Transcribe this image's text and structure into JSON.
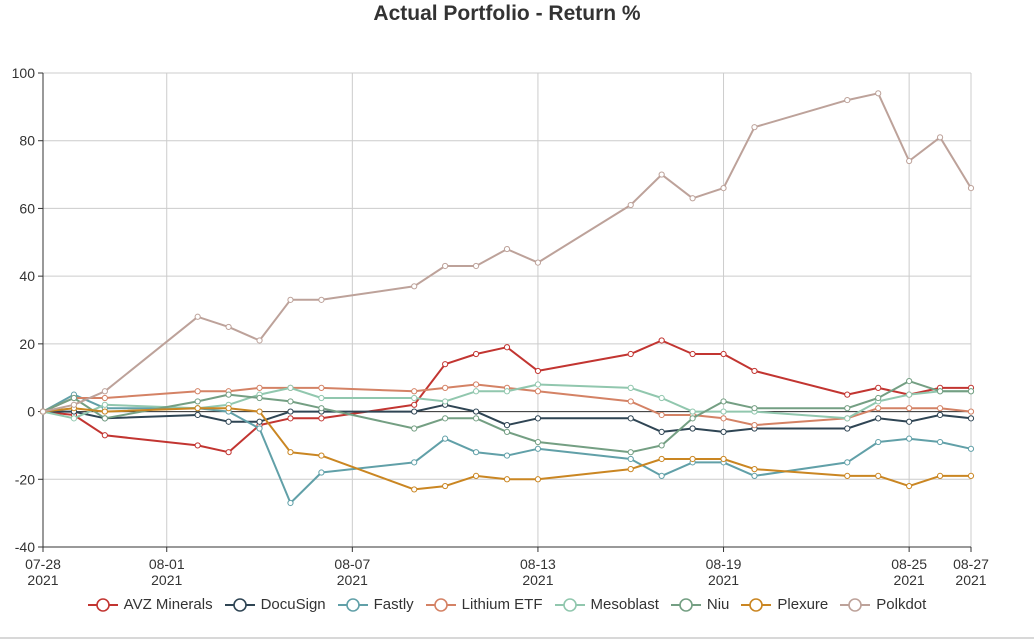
{
  "chart_data": {
    "type": "line",
    "title": "Actual Portfolio - Return %",
    "xlabel": "",
    "ylabel": "",
    "ylim": [
      -40,
      100
    ],
    "yticks": [
      -40,
      -20,
      0,
      20,
      40,
      60,
      80,
      100
    ],
    "grid": true,
    "legend_position": "bottom",
    "x_tick_labels": [
      {
        "date": "2021-07-28",
        "line1": "07-28",
        "line2": "2021"
      },
      {
        "date": "2021-08-01",
        "line1": "08-01",
        "line2": "2021"
      },
      {
        "date": "2021-08-07",
        "line1": "08-07",
        "line2": "2021"
      },
      {
        "date": "2021-08-13",
        "line1": "08-13",
        "line2": "2021"
      },
      {
        "date": "2021-08-19",
        "line1": "08-19",
        "line2": "2021"
      },
      {
        "date": "2021-08-25",
        "line1": "08-25",
        "line2": "2021"
      },
      {
        "date": "2021-08-27",
        "line1": "08-27",
        "line2": "2021"
      }
    ],
    "x": [
      "2021-07-28",
      "2021-07-29",
      "2021-07-30",
      "2021-08-02",
      "2021-08-03",
      "2021-08-04",
      "2021-08-05",
      "2021-08-06",
      "2021-08-09",
      "2021-08-10",
      "2021-08-11",
      "2021-08-12",
      "2021-08-13",
      "2021-08-16",
      "2021-08-17",
      "2021-08-18",
      "2021-08-19",
      "2021-08-20",
      "2021-08-23",
      "2021-08-24",
      "2021-08-25",
      "2021-08-26",
      "2021-08-27"
    ],
    "series": [
      {
        "name": "AVZ Minerals",
        "color": "#c23531",
        "values": [
          0,
          -1,
          -7,
          -10,
          -12,
          -4,
          -2,
          -2,
          2,
          14,
          17,
          19,
          12,
          17,
          21,
          17,
          17,
          12,
          5,
          7,
          5,
          7,
          7
        ]
      },
      {
        "name": "DocuSign",
        "color": "#2f4554",
        "values": [
          0,
          0,
          -2,
          -1,
          -3,
          -3,
          0,
          0,
          0,
          2,
          0,
          -4,
          -2,
          -2,
          -6,
          -5,
          -6,
          -5,
          -5,
          -2,
          -3,
          -1,
          -2
        ]
      },
      {
        "name": "Fastly",
        "color": "#61a0a8",
        "values": [
          0,
          5,
          1,
          1,
          0,
          -5,
          -27,
          -18,
          -15,
          -8,
          -12,
          -13,
          -11,
          -14,
          -19,
          -15,
          -15,
          -19,
          -15,
          -9,
          -8,
          -9,
          -11
        ]
      },
      {
        "name": "Lithium ETF",
        "color": "#d48265",
        "values": [
          0,
          4,
          4,
          6,
          6,
          7,
          7,
          7,
          6,
          7,
          8,
          7,
          6,
          3,
          -1,
          -1,
          -2,
          -4,
          -2,
          1,
          1,
          1,
          0
        ]
      },
      {
        "name": "Mesoblast",
        "color": "#91c7ae",
        "values": [
          0,
          -2,
          2,
          1,
          2,
          5,
          7,
          4,
          4,
          3,
          6,
          6,
          8,
          7,
          4,
          0,
          0,
          0,
          -2,
          3,
          5,
          6,
          6
        ]
      },
      {
        "name": "Niu",
        "color": "#749f83",
        "values": [
          0,
          4,
          -2,
          3,
          5,
          4,
          3,
          1,
          -5,
          -2,
          -2,
          -6,
          -9,
          -12,
          -10,
          -2,
          3,
          1,
          1,
          4,
          9,
          6,
          6
        ]
      },
      {
        "name": "Plexure",
        "color": "#ca8622",
        "values": [
          0,
          1,
          0,
          1,
          1,
          0,
          -12,
          -13,
          -23,
          -22,
          -19,
          -20,
          -20,
          -17,
          -14,
          -14,
          -14,
          -17,
          -19,
          -19,
          -22,
          -19,
          -19
        ]
      },
      {
        "name": "Polkdot",
        "color": "#bda29a",
        "values": [
          0,
          2,
          6,
          28,
          25,
          21,
          33,
          33,
          37,
          43,
          43,
          48,
          44,
          61,
          70,
          63,
          66,
          84,
          92,
          94,
          74,
          81,
          66
        ]
      }
    ]
  }
}
